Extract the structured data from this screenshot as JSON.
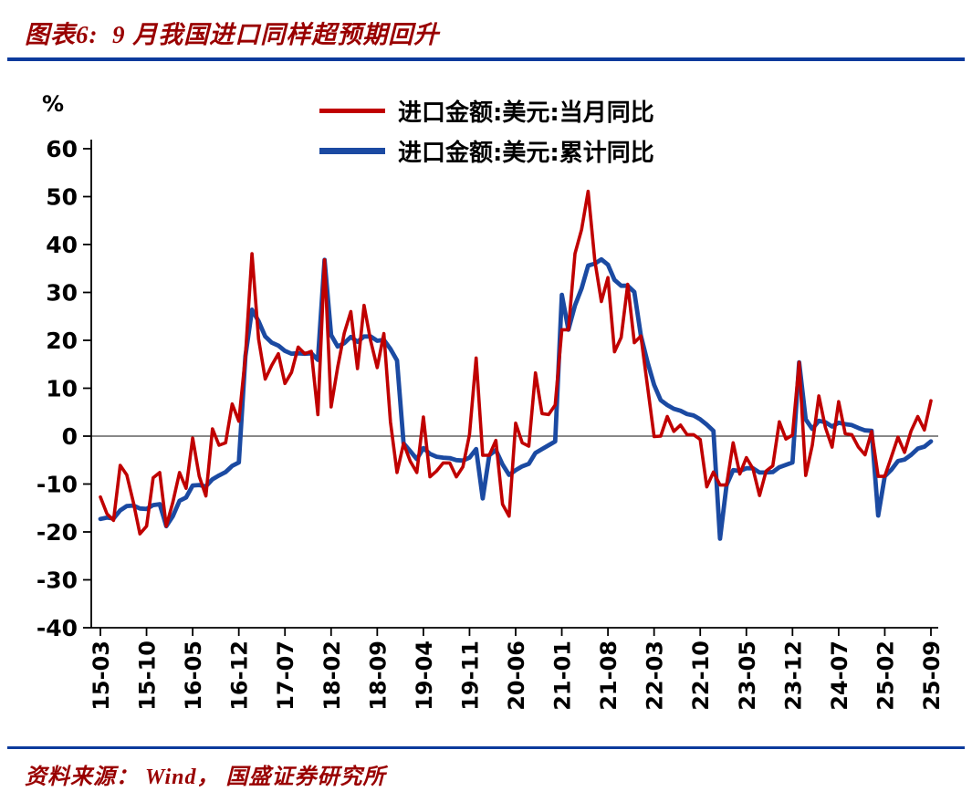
{
  "header": {
    "title": "图表6:  9 月我国进口同样超预期回升"
  },
  "footer": {
    "source": "资料来源： Wind， 国盛证券研究所"
  },
  "colors": {
    "title_red": "#990000",
    "rule_blue": "#0B3A9C",
    "series_red": "#C00000",
    "series_blue": "#1B4AA2",
    "zero_line": "#404040",
    "axis": "#000000"
  },
  "chart_data": {
    "type": "line",
    "title": "图表6: 9 月我国进口同样超预期回升",
    "xlabel": "",
    "ylabel": "%",
    "ylim": [
      -40,
      60
    ],
    "ytick_step": 10,
    "ytick_labels": [
      "60",
      "50",
      "40",
      "30",
      "20",
      "10",
      "0",
      "-10",
      "-20",
      "-30",
      "-40"
    ],
    "grid": false,
    "zero_line": true,
    "legend_position": "top",
    "x_tick_every": 7,
    "x_tick_labels": [
      "15-03",
      "15-10",
      "16-05",
      "16-12",
      "17-07",
      "18-02",
      "18-09",
      "19-04",
      "19-11",
      "20-06",
      "21-01",
      "21-08",
      "22-03",
      "22-10",
      "23-05",
      "23-12",
      "24-07",
      "25-02",
      "25-09"
    ],
    "x": [
      "15-03",
      "15-04",
      "15-05",
      "15-06",
      "15-07",
      "15-08",
      "15-09",
      "15-10",
      "15-11",
      "15-12",
      "16-01",
      "16-02",
      "16-03",
      "16-04",
      "16-05",
      "16-06",
      "16-07",
      "16-08",
      "16-09",
      "16-10",
      "16-11",
      "16-12",
      "17-01",
      "17-02",
      "17-03",
      "17-04",
      "17-05",
      "17-06",
      "17-07",
      "17-08",
      "17-09",
      "17-10",
      "17-11",
      "17-12",
      "18-01",
      "18-02",
      "18-03",
      "18-04",
      "18-05",
      "18-06",
      "18-07",
      "18-08",
      "18-09",
      "18-10",
      "18-11",
      "18-12",
      "19-01",
      "19-02",
      "19-03",
      "19-04",
      "19-05",
      "19-06",
      "19-07",
      "19-08",
      "19-09",
      "19-10",
      "19-11",
      "19-12",
      "20-01",
      "20-02",
      "20-03",
      "20-04",
      "20-05",
      "20-06",
      "20-07",
      "20-08",
      "20-09",
      "20-10",
      "20-11",
      "20-12",
      "21-01",
      "21-02",
      "21-03",
      "21-04",
      "21-05",
      "21-06",
      "21-07",
      "21-08",
      "21-09",
      "21-10",
      "21-11",
      "21-12",
      "22-01",
      "22-02",
      "22-03",
      "22-04",
      "22-05",
      "22-06",
      "22-07",
      "22-08",
      "22-09",
      "22-10",
      "22-11",
      "22-12",
      "23-01",
      "23-02",
      "23-03",
      "23-04",
      "23-05",
      "23-06",
      "23-07",
      "23-08",
      "23-09",
      "23-10",
      "23-11",
      "23-12",
      "24-01",
      "24-02",
      "24-03",
      "24-04",
      "24-05",
      "24-06",
      "24-07",
      "24-08",
      "24-09",
      "24-10",
      "24-11",
      "24-12",
      "25-01",
      "25-02",
      "25-03",
      "25-04",
      "25-05",
      "25-06",
      "25-07",
      "25-08",
      "25-09"
    ],
    "series": [
      {
        "name": "进口金额:美元:当月同比",
        "color": "#C00000",
        "width": 3.6,
        "values": [
          -12.7,
          -16.2,
          -17.6,
          -6.1,
          -8.1,
          -13.8,
          -20.4,
          -18.8,
          -8.7,
          -7.6,
          -18.8,
          -13.8,
          -7.6,
          -10.9,
          -0.4,
          -8.4,
          -12.5,
          1.5,
          -1.9,
          -1.4,
          6.7,
          3.1,
          16.7,
          38.1,
          20.3,
          11.9,
          14.8,
          17.2,
          11.0,
          13.3,
          18.6,
          17.2,
          17.7,
          4.5,
          36.8,
          6.1,
          14.4,
          21.5,
          26.0,
          14.1,
          27.3,
          19.9,
          14.3,
          21.4,
          3.0,
          -7.6,
          -1.5,
          -5.2,
          -7.6,
          4.0,
          -8.5,
          -7.3,
          -5.6,
          -5.6,
          -8.5,
          -6.4,
          0.3,
          16.3,
          -4.0,
          -4.0,
          -0.9,
          -14.2,
          -16.7,
          2.7,
          -1.4,
          -2.1,
          13.2,
          4.7,
          4.5,
          6.5,
          22.2,
          22.2,
          38.1,
          43.1,
          51.1,
          36.7,
          28.1,
          33.1,
          17.6,
          20.6,
          31.7,
          19.5,
          20.9,
          10.5,
          -0.1,
          0.0,
          4.1,
          1.0,
          2.3,
          0.3,
          0.3,
          -0.7,
          -10.6,
          -7.5,
          -10.2,
          -10.2,
          -1.4,
          -7.9,
          -4.5,
          -6.8,
          -12.4,
          -7.3,
          -6.2,
          3.0,
          -0.6,
          0.2,
          15.4,
          -8.2,
          -1.9,
          8.4,
          1.8,
          -2.3,
          7.2,
          0.5,
          0.3,
          -2.3,
          -3.9,
          1.0,
          -8.4,
          -8.4,
          -4.3,
          -0.2,
          -3.4,
          1.1,
          4.1,
          1.3,
          7.4
        ]
      },
      {
        "name": "进口金额:美元:累计同比",
        "color": "#1B4AA2",
        "width": 4.8,
        "values": [
          -17.3,
          -17.0,
          -17.2,
          -15.5,
          -14.6,
          -14.5,
          -15.1,
          -15.2,
          -14.4,
          -14.2,
          -18.8,
          -16.7,
          -13.5,
          -12.8,
          -10.3,
          -10.2,
          -10.5,
          -9.0,
          -8.2,
          -7.5,
          -6.2,
          -5.5,
          16.7,
          26.4,
          24.0,
          20.8,
          19.5,
          18.9,
          17.8,
          17.2,
          17.3,
          17.2,
          17.3,
          15.9,
          36.8,
          21.1,
          18.7,
          19.4,
          20.7,
          19.7,
          20.8,
          20.8,
          19.9,
          20.1,
          18.2,
          15.8,
          -1.5,
          -3.1,
          -4.8,
          -2.5,
          -3.7,
          -4.3,
          -4.5,
          -4.6,
          -5.0,
          -5.1,
          -4.5,
          -2.7,
          -13.0,
          -4.0,
          -2.9,
          -5.9,
          -8.1,
          -7.1,
          -6.3,
          -5.8,
          -3.5,
          -2.7,
          -1.9,
          -1.1,
          29.5,
          22.2,
          27.3,
          30.8,
          35.6,
          36.0,
          36.9,
          35.8,
          32.6,
          31.4,
          31.4,
          30.1,
          21.0,
          15.5,
          10.7,
          7.5,
          6.5,
          5.7,
          5.3,
          4.6,
          4.3,
          3.5,
          2.4,
          1.1,
          -21.4,
          -10.2,
          -7.1,
          -7.3,
          -6.7,
          -6.7,
          -7.6,
          -7.6,
          -7.5,
          -6.5,
          -6.0,
          -5.5,
          15.4,
          3.5,
          1.5,
          3.2,
          2.9,
          2.0,
          2.8,
          2.5,
          2.3,
          1.7,
          1.2,
          1.1,
          -16.6,
          -8.4,
          -7.0,
          -5.2,
          -4.9,
          -3.9,
          -2.6,
          -2.2,
          -1.1
        ]
      }
    ]
  }
}
